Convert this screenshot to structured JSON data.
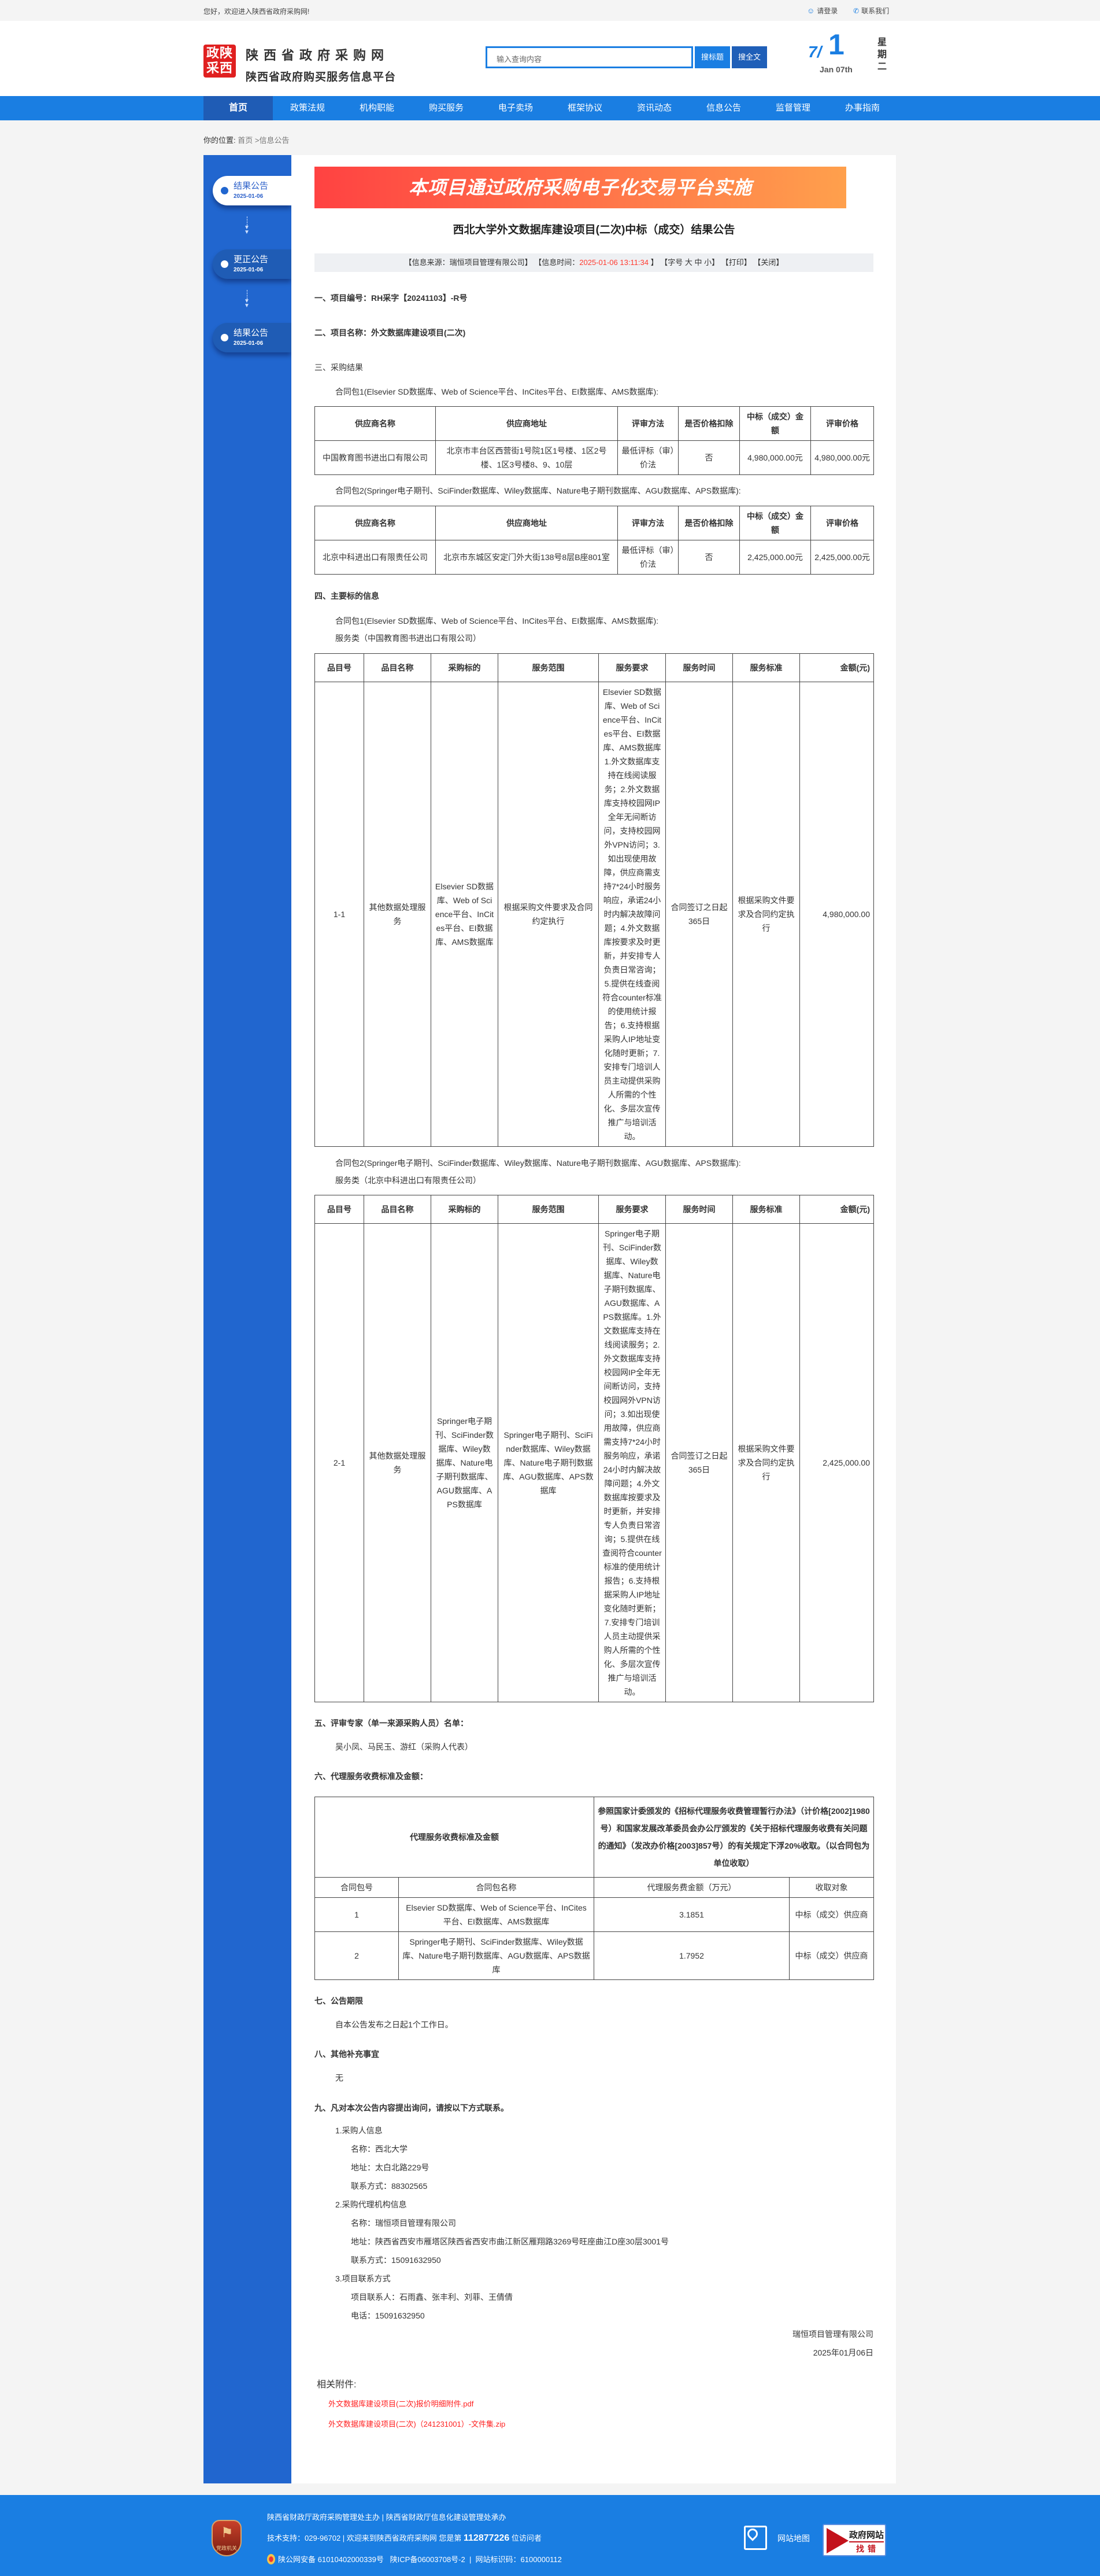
{
  "topbar": {
    "welcome": "您好，欢迎进入陕西省政府采购网!",
    "login": "请登录",
    "contact": "联系我们"
  },
  "header": {
    "logo_seal": "政陕采西",
    "site_name": "陕西省政府采购网",
    "site_subtitle": "陕西省政府购买服务信息平台",
    "search_placeholder": "输入查询内容",
    "search_title_btn": "搜标题",
    "search_full_btn": "搜全文",
    "date_month": "7/",
    "date_day": "1",
    "date_en": "Jan 07th",
    "weekday": "星期二"
  },
  "nav": [
    "首页",
    "政策法规",
    "机构职能",
    "购买服务",
    "电子卖场",
    "框架协议",
    "资讯动态",
    "信息公告",
    "监督管理",
    "办事指南"
  ],
  "breadcrumb": {
    "label": "你的位置:",
    "home": "首页",
    "sep": ">",
    "current": "信息公告"
  },
  "timeline": [
    {
      "title": "结果公告",
      "date": "2025-01-06",
      "active": true
    },
    {
      "title": "更正公告",
      "date": "2025-01-06",
      "active": false
    },
    {
      "title": "结果公告",
      "date": "2025-01-06",
      "active": false
    }
  ],
  "article": {
    "banner": "本项目通过政府采购电子化交易平台实施",
    "title": "西北大学外文数据库建设项目(二次)中标（成交）结果公告",
    "info": {
      "source": "【信息来源：瑞恒项目管理有限公司】",
      "time_label": "【信息时间：",
      "time": "2025-01-06 13:11:34",
      "time_end": "】",
      "font": "【字号 大 中 小】",
      "print": "【打印】",
      "close": "【关闭】"
    },
    "s1": "一、项目编号：RH采字【20241103】-R号",
    "s2": "二、项目名称：外文数据库建设项目(二次)",
    "s3": "三、采购结果",
    "pkg1": "合同包1(Elsevier SD数据库、Web of Science平台、InCites平台、EI数据库、AMS数据库):",
    "pkg2": "合同包2(Springer电子期刊、SciFinder数据库、Wiley数据库、Nature电子期刊数据库、AGU数据库、APS数据库):",
    "result_headers": [
      "供应商名称",
      "供应商地址",
      "评审方法",
      "是否价格扣除",
      "中标（成交）金额",
      "评审价格"
    ],
    "result1": [
      "中国教育图书进出口有限公司",
      "北京市丰台区西营街1号院1区1号楼、1区2号楼、1区3号楼8、9、10层",
      "最低评标（审）价法",
      "否",
      "4,980,000.00元",
      "4,980,000.00元"
    ],
    "result2": [
      "北京中科进出口有限责任公司",
      "北京市东城区安定门外大街138号8层B座801室",
      "最低评标（审）价法",
      "否",
      "2,425,000.00元",
      "2,425,000.00元"
    ],
    "s4": "四、主要标的信息",
    "svc1": "服务类（中国教育图书进出口有限公司）",
    "svc2": "服务类（北京中科进出口有限责任公司）",
    "item_headers": [
      "品目号",
      "品目名称",
      "采购标的",
      "服务范围",
      "服务要求",
      "服务时间",
      "服务标准",
      "金额(元)"
    ],
    "item1": [
      "1-1",
      "其他数据处理服务",
      "Elsevier SD数据库、Web of Science平台、InCites平台、EI数据库、AMS数据库",
      "根据采购文件要求及合同约定执行",
      "Elsevier SD数据库、Web of Science平台、InCites平台、EI数据库、AMS数据库 1.外文数据库支持在线阅读服务；2.外文数据库支持校园网IP全年无间断访问，支持校园网外VPN访问；3.如出现使用故障，供应商需支持7*24小时服务响应，承诺24小时内解决故障问题；4.外文数据库按要求及时更新，并安排专人负责日常咨询；5.提供在线查阅符合counter标准的使用统计报告；6.支持根据采购人IP地址变化随时更新；7.安排专门培训人员主动提供采购人所需的个性化、多层次宣传推广与培训活动。",
      "合同签订之日起365日",
      "根据采购文件要求及合同约定执行",
      "4,980,000.00"
    ],
    "item2": [
      "2-1",
      "其他数据处理服务",
      "Springer电子期刊、SciFinder数据库、Wiley数据库、Nature电子期刊数据库、AGU数据库、APS数据库",
      "Springer电子期刊、SciFinder数据库、Wiley数据库、Nature电子期刊数据库、AGU数据库、APS数据库",
      "Springer电子期刊、SciFinder数据库、Wiley数据库、Nature电子期刊数据库、AGU数据库、APS数据库。1.外文数据库支持在线阅读服务；2.外文数据库支持校园网IP全年无间断访问，支持校园网外VPN访问；3.如出现使用故障，供应商需支持7*24小时服务响应，承诺24小时内解决故障问题；4.外文数据库按要求及时更新，并安排专人负责日常咨询；5.提供在线查阅符合counter标准的使用统计报告；6.支持根据采购人IP地址变化随时更新；7.安排专门培训人员主动提供采购人所需的个性化、多层次宣传推广与培训活动。",
      "合同签订之日起365日",
      "根据采购文件要求及合同约定执行",
      "2,425,000.00"
    ],
    "s5": "五、评审专家（单一来源采购人员）名单：",
    "experts": "吴小凤、马民玉、游红（采购人代表）",
    "s6": "六、代理服务收费标准及金额：",
    "fee_label": "代理服务收费标准及金额",
    "fee_desc": "参照国家计委颁发的《招标代理服务收费管理暂行办法》（计价格[2002]1980号）和国家发展改革委员会办公厅颁发的《关于招标代理服务收费有关问题的通知》（发改办价格[2003]857号）的有关规定下浮20%收取。（以合同包为单位收取）",
    "fee_headers": [
      "合同包号",
      "合同包名称",
      "代理服务费金额（万元）",
      "收取对象"
    ],
    "fee_rows": [
      [
        "1",
        "Elsevier SD数据库、Web of Science平台、InCites平台、EI数据库、AMS数据库",
        "3.1851",
        "中标（成交）供应商"
      ],
      [
        "2",
        "Springer电子期刊、SciFinder数据库、Wiley数据库、Nature电子期刊数据库、AGU数据库、APS数据库",
        "1.7952",
        "中标（成交）供应商"
      ]
    ],
    "s7": "七、公告期限",
    "period": "自本公告发布之日起1个工作日。",
    "s8": "八、其他补充事宜",
    "other": "无",
    "s9": "九、凡对本次公告内容提出询问，请按以下方式联系。",
    "contacts": [
      {
        "t": "1.采购人信息",
        "lvl": 1
      },
      {
        "t": "名称：西北大学",
        "lvl": 2
      },
      {
        "t": "地址：太白北路229号",
        "lvl": 2
      },
      {
        "t": "联系方式：88302565",
        "lvl": 2
      },
      {
        "t": "2.采购代理机构信息",
        "lvl": 1
      },
      {
        "t": "名称：瑞恒项目管理有限公司",
        "lvl": 2
      },
      {
        "t": "地址：陕西省西安市雁塔区陕西省西安市曲江新区雁翔路3269号旺座曲江D座30层3001号",
        "lvl": 2
      },
      {
        "t": "联系方式：15091632950",
        "lvl": 2
      },
      {
        "t": "3.项目联系方式",
        "lvl": 1
      },
      {
        "t": "项目联系人：石雨鑫、张丰利、刘菲、王倩倩",
        "lvl": 2
      },
      {
        "t": "电话：15091632950",
        "lvl": 2
      }
    ],
    "signer": "瑞恒项目管理有限公司",
    "sign_date": "2025年01月06日",
    "attachments_title": "相关附件:",
    "attachments": [
      "外文数据库建设项目(二次)报价明细附件.pdf",
      "外文数据库建设项目(二次)（241231001）-文件集.zip"
    ]
  },
  "footer": {
    "line1": "陕西省财政厅政府采购管理处主办 | 陕西省财政厅信息化建设管理处承办",
    "support": "技术支持：029-96702 | 欢迎来到陕西省政府采购网 您是第",
    "visitor_count": "112877226",
    "visitor_suffix": "位访问者",
    "icp": "陕公网安备 61010402000339号   陕ICP备06003708号-2  |  网站标识码：6100000112",
    "emblem_text": "党政机关",
    "sitemap": "网站地图",
    "report_top": "政府网站",
    "report_bottom": "找错"
  },
  "colors": {
    "brand_blue": "#1a7ee2",
    "nav_active": "#1f5cb5",
    "sidebar": "#2166cf",
    "highlight_red": "#ff3b30",
    "link_red": "#ff2020"
  }
}
